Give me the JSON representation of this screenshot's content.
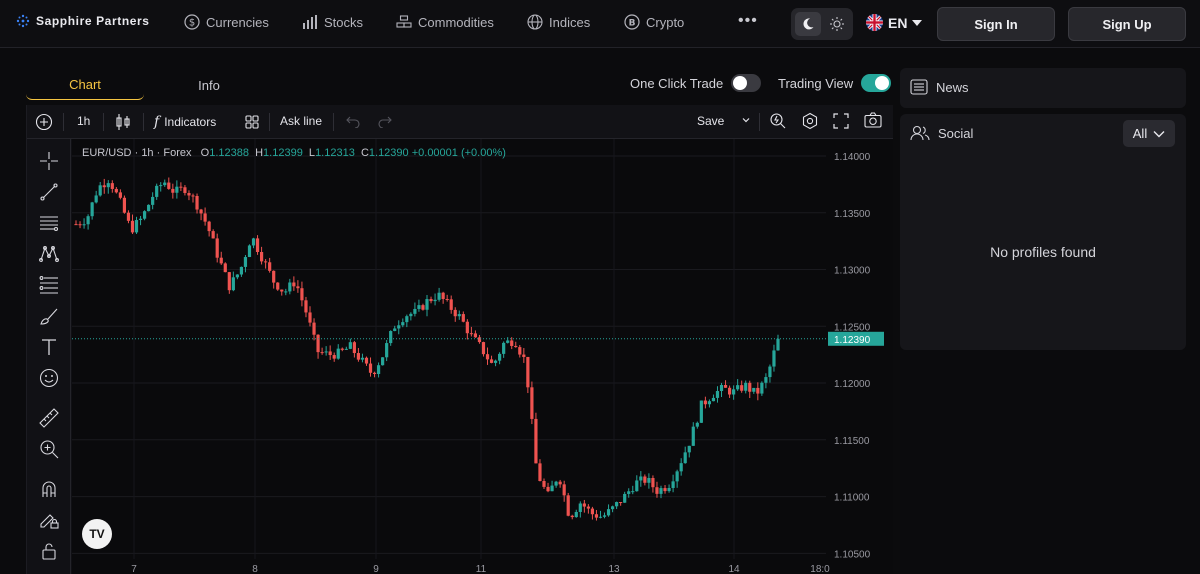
{
  "brand": {
    "name": "Sapphire Partners"
  },
  "nav": {
    "items": [
      {
        "label": "Currencies",
        "icon": "dollar-coin-icon"
      },
      {
        "label": "Stocks",
        "icon": "bar-chart-icon"
      },
      {
        "label": "Commodities",
        "icon": "bars-stack-icon"
      },
      {
        "label": "Indices",
        "icon": "globe-icon"
      },
      {
        "label": "Crypto",
        "icon": "bitcoin-icon"
      }
    ],
    "more": "•••",
    "language": "EN",
    "sign_in": "Sign In",
    "sign_up": "Sign Up"
  },
  "panel": {
    "tabs": [
      {
        "label": "Chart"
      },
      {
        "label": "Info"
      }
    ],
    "one_click_trade": {
      "label": "One Click Trade",
      "on": false
    },
    "trading_view": {
      "label": "Trading View",
      "on": true
    }
  },
  "toolbar": {
    "interval": "1h",
    "indicators": "Indicators",
    "ask_line": "Ask line",
    "save": "Save"
  },
  "chart_data": {
    "type": "candlestick",
    "symbol": "EUR/USD",
    "interval": "1h",
    "market": "Forex",
    "ohlc": {
      "O": "1.12388",
      "H": "1.12399",
      "L": "1.12313",
      "C": "1.12390",
      "change": "+0.00001",
      "change_pct": "(+0.00%)"
    },
    "last_price": "1.12390",
    "ylim": [
      1.1045,
      1.1415
    ],
    "y_ticks": [
      "1.14000",
      "1.13500",
      "1.13000",
      "1.12500",
      "1.12000",
      "1.11500",
      "1.11000",
      "1.10500"
    ],
    "x_ticks": [
      "7",
      "8",
      "9",
      "11",
      "13",
      "14",
      "18:0"
    ],
    "up_color": "#26a69a",
    "down_color": "#ef5350",
    "close_path": [
      1.134,
      1.1345,
      1.1372,
      1.138,
      1.136,
      1.1335,
      1.1345,
      1.1365,
      1.1378,
      1.1368,
      1.1372,
      1.1358,
      1.1338,
      1.131,
      1.1285,
      1.13,
      1.133,
      1.131,
      1.129,
      1.128,
      1.129,
      1.1262,
      1.1228,
      1.1225,
      1.1226,
      1.1232,
      1.122,
      1.1208,
      1.1225,
      1.125,
      1.126,
      1.1262,
      1.1272,
      1.1278,
      1.1268,
      1.1258,
      1.1242,
      1.123,
      1.1215,
      1.1235,
      1.1238,
      1.1218,
      1.1122,
      1.11,
      1.112,
      1.1082,
      1.1095,
      1.1085,
      1.1082,
      1.109,
      1.11,
      1.1112,
      1.1115,
      1.1105,
      1.111,
      1.1128,
      1.115,
      1.118,
      1.119,
      1.1195,
      1.1192,
      1.1198,
      1.119,
      1.1205,
      1.1239
    ]
  },
  "news": {
    "title": "News"
  },
  "social": {
    "title": "Social",
    "filter": "All",
    "empty": "No profiles found"
  }
}
